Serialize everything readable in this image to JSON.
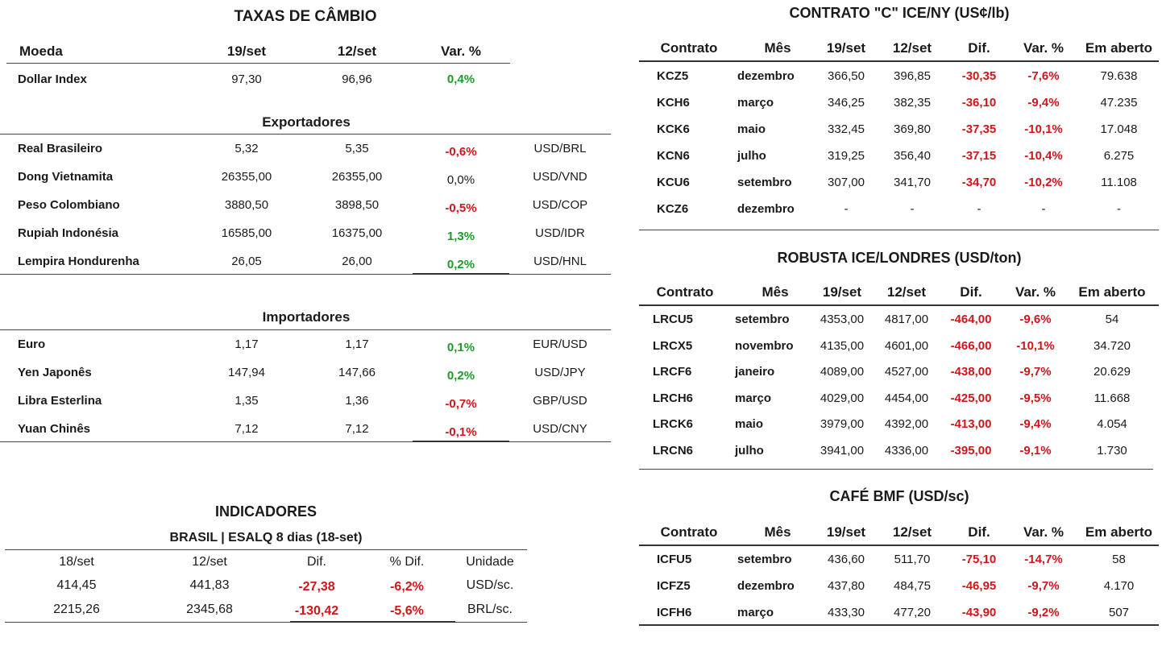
{
  "fx": {
    "title": "TAXAS DE CÂMBIO",
    "headers": [
      "Moeda",
      "19/set",
      "12/set",
      "Var. %"
    ],
    "dollar_index": {
      "name": "Dollar Index",
      "v19": "97,30",
      "v12": "96,96",
      "var": "0,4%",
      "sign": "pos"
    },
    "exportadores_label": "Exportadores",
    "exportadores": [
      {
        "name": "Real Brasileiro",
        "v19": "5,32",
        "v12": "5,35",
        "var": "-0,6%",
        "sign": "neg",
        "pair": "USD/BRL"
      },
      {
        "name": "Dong Vietnamita",
        "v19": "26355,00",
        "v12": "26355,00",
        "var": "0,0%",
        "sign": "zero",
        "pair": "USD/VND"
      },
      {
        "name": "Peso Colombiano",
        "v19": "3880,50",
        "v12": "3898,50",
        "var": "-0,5%",
        "sign": "neg",
        "pair": "USD/COP"
      },
      {
        "name": "Rupiah Indonésia",
        "v19": "16585,00",
        "v12": "16375,00",
        "var": "1,3%",
        "sign": "pos",
        "pair": "USD/IDR"
      },
      {
        "name": "Lempira Hondurenha",
        "v19": "26,05",
        "v12": "26,00",
        "var": "0,2%",
        "sign": "pos",
        "pair": "USD/HNL"
      }
    ],
    "importadores_label": "Importadores",
    "importadores": [
      {
        "name": "Euro",
        "v19": "1,17",
        "v12": "1,17",
        "var": "0,1%",
        "sign": "pos",
        "pair": "EUR/USD"
      },
      {
        "name": "Yen Japonês",
        "v19": "147,94",
        "v12": "147,66",
        "var": "0,2%",
        "sign": "pos",
        "pair": "USD/JPY"
      },
      {
        "name": "Libra Esterlina",
        "v19": "1,35",
        "v12": "1,36",
        "var": "-0,7%",
        "sign": "neg",
        "pair": "GBP/USD"
      },
      {
        "name": "Yuan Chinês",
        "v19": "7,12",
        "v12": "7,12",
        "var": "-0,1%",
        "sign": "neg",
        "pair": "USD/CNY"
      }
    ]
  },
  "indicadores": {
    "title": "INDICADORES",
    "subtitle": "BRASIL | ESALQ 8 dias (18-set)",
    "headers": [
      "18/set",
      "12/set",
      "Dif.",
      "% Dif.",
      "Unidade"
    ],
    "rows": [
      {
        "a": "414,45",
        "b": "441,83",
        "dif": "-27,38",
        "pct": "-6,2%",
        "unit": "USD/sc."
      },
      {
        "a": "2215,26",
        "b": "2345,68",
        "dif": "-130,42",
        "pct": "-5,6%",
        "unit": "BRL/sc."
      }
    ]
  },
  "contrato_c": {
    "title": "CONTRATO \"C\" ICE/NY (US¢/lb)",
    "headers": [
      "Contrato",
      "Mês",
      "19/set",
      "12/set",
      "Dif.",
      "Var. %",
      "Em aberto"
    ],
    "rows": [
      {
        "code": "KCZ5",
        "month": "dezembro",
        "v19": "366,50",
        "v12": "396,85",
        "dif": "-30,35",
        "var": "-7,6%",
        "open": "79.638"
      },
      {
        "code": "KCH6",
        "month": "março",
        "v19": "346,25",
        "v12": "382,35",
        "dif": "-36,10",
        "var": "-9,4%",
        "open": "47.235"
      },
      {
        "code": "KCK6",
        "month": "maio",
        "v19": "332,45",
        "v12": "369,80",
        "dif": "-37,35",
        "var": "-10,1%",
        "open": "17.048"
      },
      {
        "code": "KCN6",
        "month": "julho",
        "v19": "319,25",
        "v12": "356,40",
        "dif": "-37,15",
        "var": "-10,4%",
        "open": "6.275"
      },
      {
        "code": "KCU6",
        "month": "setembro",
        "v19": "307,00",
        "v12": "341,70",
        "dif": "-34,70",
        "var": "-10,2%",
        "open": "11.108"
      },
      {
        "code": "KCZ6",
        "month": "dezembro",
        "v19": "-",
        "v12": "-",
        "dif": "-",
        "var": "-",
        "open": "-"
      }
    ]
  },
  "robusta": {
    "title": "ROBUSTA ICE/LONDRES (USD/ton)",
    "headers": [
      "Contrato",
      "Mês",
      "19/set",
      "12/set",
      "Dif.",
      "Var. %",
      "Em aberto"
    ],
    "rows": [
      {
        "code": "LRCU5",
        "month": "setembro",
        "v19": "4353,00",
        "v12": "4817,00",
        "dif": "-464,00",
        "var": "-9,6%",
        "open": "54"
      },
      {
        "code": "LRCX5",
        "month": "novembro",
        "v19": "4135,00",
        "v12": "4601,00",
        "dif": "-466,00",
        "var": "-10,1%",
        "open": "34.720"
      },
      {
        "code": "LRCF6",
        "month": "janeiro",
        "v19": "4089,00",
        "v12": "4527,00",
        "dif": "-438,00",
        "var": "-9,7%",
        "open": "20.629"
      },
      {
        "code": "LRCH6",
        "month": "março",
        "v19": "4029,00",
        "v12": "4454,00",
        "dif": "-425,00",
        "var": "-9,5%",
        "open": "11.668"
      },
      {
        "code": "LRCK6",
        "month": "maio",
        "v19": "3979,00",
        "v12": "4392,00",
        "dif": "-413,00",
        "var": "-9,4%",
        "open": "4.054"
      },
      {
        "code": "LRCN6",
        "month": "julho",
        "v19": "3941,00",
        "v12": "4336,00",
        "dif": "-395,00",
        "var": "-9,1%",
        "open": "1.730"
      }
    ]
  },
  "bmf": {
    "title": "CAFÉ BMF (USD/sc)",
    "headers": [
      "Contrato",
      "Mês",
      "19/set",
      "12/set",
      "Dif.",
      "Var. %",
      "Em aberto"
    ],
    "rows": [
      {
        "code": "ICFU5",
        "month": "setembro",
        "v19": "436,60",
        "v12": "511,70",
        "dif": "-75,10",
        "var": "-14,7%",
        "open": "58"
      },
      {
        "code": "ICFZ5",
        "month": "dezembro",
        "v19": "437,80",
        "v12": "484,75",
        "dif": "-46,95",
        "var": "-9,7%",
        "open": "4.170"
      },
      {
        "code": "ICFH6",
        "month": "março",
        "v19": "433,30",
        "v12": "477,20",
        "dif": "-43,90",
        "var": "-9,2%",
        "open": "507"
      }
    ]
  },
  "colors": {
    "negative": "#d0151b",
    "positive": "#1e9a2c",
    "text": "#1a1a1a"
  }
}
